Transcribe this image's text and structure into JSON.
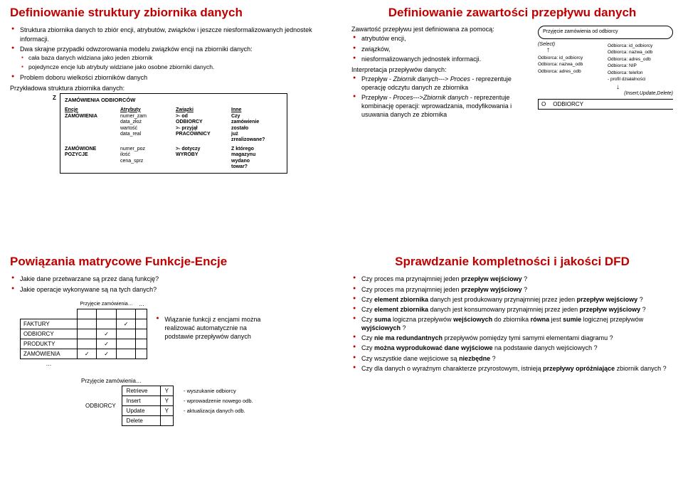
{
  "slide1": {
    "title": "Definiowanie struktury zbiornika danych",
    "bullets": [
      "Struktura zbiornika danych to zbiór encji, atrybutów, związków i jeszcze niesformalizowanych jednostek informacji.",
      "Dwa skrajne przypadki odwzorowania modelu związków encji na zbiorniki danych:",
      "Problem doboru wielkości zbiorników danych"
    ],
    "sub": [
      "cała baza danych widziana jako jeden zbiornik",
      "pojedyncze encje lub atrybuty widziane jako osobne zbiorniki danych."
    ],
    "example": "Przykładowa struktura zbiornika danych:",
    "z": "Z",
    "boxtitle": "ZAMÓWIENIA ODBIORCÓW",
    "cols": [
      "Encje",
      "Atrybuty",
      "Związki",
      "Inne"
    ],
    "row1": {
      "encja": "ZAMÓWIENIA",
      "attr": "numer_zam\ndata_złoż\nwartość\ndata_real",
      "zw": ">- od\nODBIORCY\n>- przyjął\nPRACOWNICY",
      "inne": "Czy\nzamówienie\nzostało\njuż\nzrealizowane?"
    },
    "row2": {
      "encja": "ZAMÓWIONE\nPOZYCJE",
      "attr": "numer_poz\nilość\ncena_sprz",
      "zw": ">- dotyczy\nWYROBY",
      "inne": "Z którego\nmagazynu\nwydano\ntowar?"
    }
  },
  "slide2": {
    "title": "Definiowanie zawartości przepływu danych",
    "lead": "Zawartość przepływu jest definiowana za pomocą:",
    "items": [
      "atrybutów encji,",
      "związków,",
      "niesformalizowanych jednostek informacji."
    ],
    "interp": "Interpretacja przepływów danych:",
    "i1a": "Przepływ - ",
    "i1b": "Zbiornik danych",
    "i1c": "--->",
    "i1d": "Proces",
    "i1e": " - reprezentuje operację odczytu danych ze zbiornika",
    "i2a": "Przepływ - ",
    "i2b": "Proces",
    "i2c": "--->",
    "i2d": "Zbiornik danych",
    "i2e": " - reprezentuje kombinację operacji: wprowadzania, modyfikowania i usuwania danych ze zbiornika",
    "proc": "Przyjęcie zamówienia od odbiorcy",
    "sel": "(Select)",
    "f1": [
      "Odbiorca: id_odbiorcy",
      "Odbiorca: nazwa_odb",
      "Odbiorca: adres_odb"
    ],
    "f2": [
      "Odbiorca: id_odbiorcy",
      "Odbiorca: nazwa_odb",
      "Odbiorca: adres_odb",
      "Odbiorca: NIP",
      "Odbiorca: telefon",
      "- profil działalności"
    ],
    "iud": "(Insert,Update,Delete)",
    "storeO": "O",
    "store": "ODBIORCY"
  },
  "slide3": {
    "title": "Powiązania matrycowe Funkcje-Encje",
    "q": [
      "Jakie dane przetwarzane są przez daną funkcję?",
      "Jakie operacje wykonywane są na tych danych?"
    ],
    "collab": "Przyjęcie zamówienia…",
    "rows": [
      "FAKTURY",
      "ODBIORCY",
      "PRODUKTY",
      "ZAMÓWIENIA"
    ],
    "checks": [
      [
        0,
        0,
        1,
        0
      ],
      [
        0,
        1,
        0,
        0
      ],
      [
        0,
        1,
        0,
        0
      ],
      [
        1,
        1,
        0,
        0
      ]
    ],
    "dots": "…",
    "note": "Wiązanie funkcji z encjami można realizować automatycznie na podstawie przepływów danych",
    "mat2side": "ODBIORCY",
    "mat2lab": "Przyjęcie zamówienia…",
    "ops": [
      "Retrieve",
      "Insert",
      "Update",
      "Delete"
    ],
    "y": [
      "Y",
      "Y",
      "Y",
      ""
    ],
    "desc": [
      "- wyszukanie odbiorcy",
      "- wprowadzenie nowego odb.",
      "- aktualizacja danych odb.",
      ""
    ]
  },
  "slide4": {
    "title": "Sprawdzanie kompletności i jakości DFD",
    "b": [
      [
        "Czy proces ma przynajmniej jeden ",
        "przepływ wejściowy",
        " ?"
      ],
      [
        "Czy proces ma przynajmniej jeden ",
        "przepływ wyjściowy",
        " ?"
      ],
      [
        "Czy ",
        "element zbiornika",
        " danych jest produkowany przynajmniej przez jeden ",
        "przepływ wejściowy",
        " ?"
      ],
      [
        "Czy ",
        "element zbiornika",
        " danych jest konsumowany przynajmniej przez jeden ",
        "przepływ wyjściowy",
        " ?"
      ],
      [
        "Czy ",
        "suma",
        " logiczna przepływów ",
        "wejściowych",
        " do zbiornika ",
        "równa",
        " jest ",
        "sumie",
        " logicznej przepływów ",
        "wyjściowych",
        " ?"
      ],
      [
        "Czy ",
        "nie ma redundantnych",
        " przepływów pomiędzy tymi samymi elementami diagramu ?"
      ],
      [
        "Czy ",
        "można wyprodukować dane wyjściowe",
        " na podstawie danych wejściowych ?"
      ],
      [
        "Czy wszystkie dane wejściowe są ",
        "niezbędne",
        " ?"
      ],
      [
        "Czy dla danych o wyraźnym charakterze przyrostowym, istnieją ",
        "przepływy opróżniające",
        " zbiornik danych ?"
      ]
    ]
  }
}
